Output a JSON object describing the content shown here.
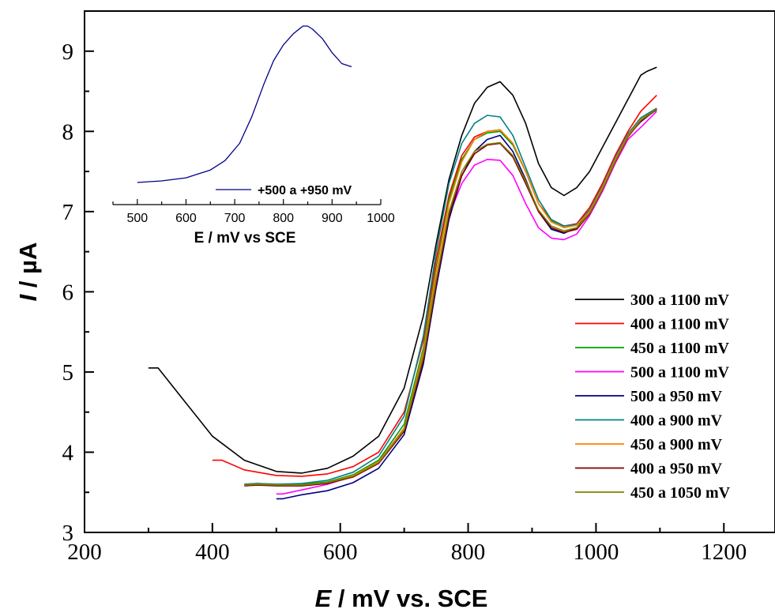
{
  "chart_data": [
    {
      "type": "line",
      "title": "",
      "xlabel_italic": "E",
      "xlabel_rest": " / mV vs. SCE",
      "ylabel_italic": "I",
      "ylabel_rest": " / µA",
      "xlim": [
        200,
        1280
      ],
      "ylim": [
        3,
        9.5
      ],
      "xticks": [
        "200",
        "400",
        "600",
        "800",
        "1000",
        "1200"
      ],
      "yticks": [
        "3",
        "4",
        "5",
        "6",
        "7",
        "8",
        "9"
      ],
      "legend_position": "right",
      "series": [
        {
          "name": "300 a 1100 mV",
          "color": "#000000",
          "x": [
            300,
            315,
            350,
            400,
            450,
            500,
            540,
            580,
            620,
            660,
            700,
            730,
            750,
            770,
            790,
            810,
            830,
            850,
            870,
            890,
            910,
            930,
            950,
            970,
            990,
            1010,
            1030,
            1050,
            1070,
            1080,
            1095
          ],
          "y": [
            5.05,
            5.05,
            4.7,
            4.2,
            3.9,
            3.76,
            3.74,
            3.8,
            3.95,
            4.2,
            4.8,
            5.7,
            6.6,
            7.4,
            7.95,
            8.35,
            8.55,
            8.62,
            8.45,
            8.1,
            7.6,
            7.3,
            7.2,
            7.3,
            7.5,
            7.8,
            8.1,
            8.4,
            8.7,
            8.75,
            8.8
          ]
        },
        {
          "name": "400 a 1100 mV",
          "color": "#ff0000",
          "x": [
            400,
            415,
            450,
            500,
            540,
            580,
            620,
            660,
            700,
            730,
            750,
            770,
            790,
            810,
            830,
            850,
            870,
            890,
            910,
            930,
            950,
            970,
            990,
            1010,
            1030,
            1050,
            1070,
            1095
          ],
          "y": [
            3.9,
            3.9,
            3.78,
            3.71,
            3.7,
            3.73,
            3.82,
            4.0,
            4.5,
            5.4,
            6.4,
            7.2,
            7.7,
            7.93,
            8.0,
            8.02,
            7.85,
            7.5,
            7.1,
            6.9,
            6.82,
            6.85,
            7.05,
            7.35,
            7.7,
            8.0,
            8.25,
            8.45
          ]
        },
        {
          "name": "450 a 1100 mV",
          "color": "#00a000",
          "x": [
            450,
            470,
            500,
            540,
            580,
            620,
            660,
            700,
            730,
            750,
            770,
            790,
            810,
            830,
            850,
            870,
            890,
            910,
            930,
            950,
            970,
            990,
            1010,
            1030,
            1050,
            1070,
            1095
          ],
          "y": [
            3.6,
            3.61,
            3.6,
            3.6,
            3.63,
            3.72,
            3.9,
            4.35,
            5.3,
            6.3,
            7.15,
            7.65,
            7.9,
            7.98,
            8.0,
            7.83,
            7.5,
            7.1,
            6.88,
            6.8,
            6.83,
            7.0,
            7.3,
            7.65,
            7.95,
            8.15,
            8.28
          ]
        },
        {
          "name": "500 a 1100 mV",
          "color": "#ff00ff",
          "x": [
            500,
            510,
            540,
            580,
            620,
            660,
            700,
            730,
            750,
            770,
            790,
            810,
            830,
            850,
            870,
            890,
            910,
            930,
            950,
            970,
            990,
            1010,
            1030,
            1050,
            1070,
            1095
          ],
          "y": [
            3.48,
            3.48,
            3.53,
            3.6,
            3.7,
            3.88,
            4.3,
            5.2,
            6.15,
            6.95,
            7.35,
            7.58,
            7.65,
            7.64,
            7.45,
            7.1,
            6.8,
            6.67,
            6.65,
            6.72,
            6.95,
            7.25,
            7.6,
            7.9,
            8.05,
            8.25
          ]
        },
        {
          "name": "500 a 950 mV",
          "color": "#000080",
          "x": [
            500,
            510,
            540,
            580,
            620,
            660,
            700,
            730,
            750,
            770,
            790,
            810,
            830,
            850,
            870,
            890,
            910,
            930,
            950,
            970,
            990,
            1010,
            1030,
            1050,
            1070,
            1095
          ],
          "y": [
            3.42,
            3.42,
            3.47,
            3.52,
            3.62,
            3.8,
            4.22,
            5.1,
            6.05,
            6.9,
            7.45,
            7.75,
            7.9,
            7.95,
            7.75,
            7.4,
            7.0,
            6.78,
            6.73,
            6.8,
            7.0,
            7.3,
            7.65,
            7.95,
            8.12,
            8.28
          ]
        },
        {
          "name": "400 a 900 mV",
          "color": "#008080",
          "x": [
            450,
            470,
            500,
            540,
            580,
            620,
            660,
            700,
            730,
            750,
            770,
            790,
            810,
            830,
            850,
            870,
            890,
            910,
            930,
            950,
            970,
            990,
            1010,
            1030,
            1050,
            1070,
            1095
          ],
          "y": [
            3.6,
            3.61,
            3.6,
            3.61,
            3.65,
            3.75,
            3.95,
            4.45,
            5.45,
            6.5,
            7.35,
            7.85,
            8.1,
            8.2,
            8.18,
            7.95,
            7.55,
            7.15,
            6.9,
            6.82,
            6.84,
            7.02,
            7.32,
            7.67,
            7.97,
            8.17,
            8.29
          ]
        },
        {
          "name": "450 a 900 mV",
          "color": "#ff8000",
          "x": [
            450,
            470,
            500,
            540,
            580,
            620,
            660,
            700,
            730,
            750,
            770,
            790,
            810,
            830,
            850,
            870,
            890,
            910,
            930,
            950,
            970,
            990,
            1010,
            1030,
            1050,
            1070,
            1095
          ],
          "y": [
            3.59,
            3.6,
            3.59,
            3.59,
            3.62,
            3.71,
            3.88,
            4.3,
            5.25,
            6.25,
            7.1,
            7.62,
            7.9,
            8.0,
            8.02,
            7.85,
            7.5,
            7.1,
            6.87,
            6.8,
            6.83,
            7.0,
            7.3,
            7.65,
            7.95,
            8.15,
            8.27
          ]
        },
        {
          "name": "400 a 950 mV",
          "color": "#800000",
          "x": [
            450,
            470,
            500,
            540,
            580,
            620,
            660,
            700,
            730,
            750,
            770,
            790,
            810,
            830,
            850,
            870,
            890,
            910,
            930,
            950,
            970,
            990,
            1010,
            1030,
            1050,
            1070,
            1095
          ],
          "y": [
            3.58,
            3.59,
            3.58,
            3.58,
            3.61,
            3.69,
            3.86,
            4.26,
            5.15,
            6.1,
            6.95,
            7.45,
            7.72,
            7.83,
            7.85,
            7.68,
            7.35,
            7.0,
            6.8,
            6.74,
            6.78,
            6.97,
            7.27,
            7.62,
            7.93,
            8.13,
            8.27
          ]
        },
        {
          "name": "450 a 1050 mV",
          "color": "#808000",
          "x": [
            450,
            470,
            500,
            540,
            580,
            620,
            660,
            700,
            730,
            750,
            770,
            790,
            810,
            830,
            850,
            870,
            890,
            910,
            930,
            950,
            970,
            990,
            1010,
            1030,
            1050,
            1070,
            1095
          ],
          "y": [
            3.59,
            3.6,
            3.59,
            3.59,
            3.62,
            3.7,
            3.87,
            4.28,
            5.2,
            6.15,
            7.0,
            7.5,
            7.75,
            7.84,
            7.86,
            7.7,
            7.38,
            7.02,
            6.82,
            6.76,
            6.8,
            6.98,
            7.28,
            7.63,
            7.94,
            8.14,
            8.28
          ]
        }
      ]
    },
    {
      "type": "line",
      "title": "",
      "xlabel": "E / mV vs SCE",
      "xlim": [
        450,
        1000
      ],
      "xticks": [
        "500",
        "600",
        "700",
        "800",
        "900",
        "1000"
      ],
      "series": [
        {
          "name": "+500 a +950 mV",
          "color": "#00008b",
          "x": [
            500,
            550,
            600,
            650,
            680,
            710,
            735,
            760,
            780,
            800,
            820,
            840,
            850,
            860,
            880,
            900,
            920,
            940
          ],
          "y": [
            0.0,
            0.01,
            0.03,
            0.08,
            0.14,
            0.25,
            0.42,
            0.63,
            0.78,
            0.88,
            0.95,
            1.0,
            1.0,
            0.98,
            0.92,
            0.83,
            0.76,
            0.74
          ]
        }
      ]
    }
  ]
}
